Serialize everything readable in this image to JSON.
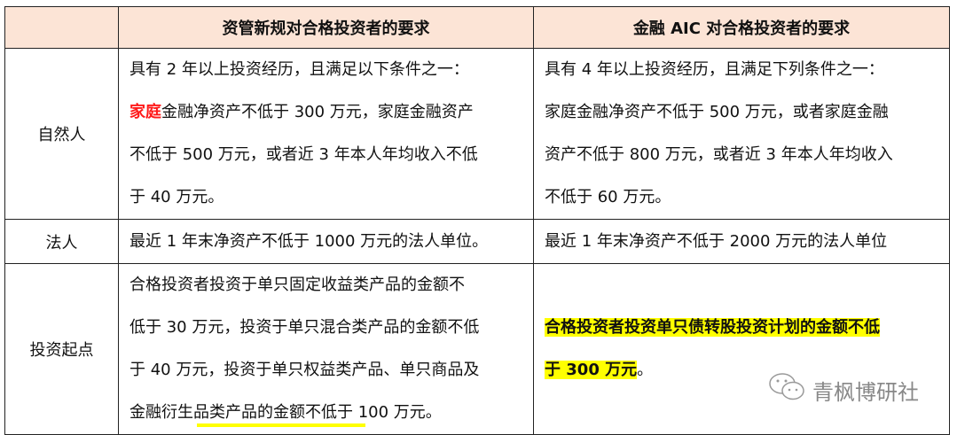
{
  "header": {
    "col1": "",
    "col2": "资管新规对合格投资者的要求",
    "col3": "金融 AIC 对合格投资者的要求"
  },
  "rows": [
    {
      "label": "自然人",
      "col2": {
        "lines": [
          "具有 2 年以上投资经历，且满足以下条件之一：",
          "金融净资产不低于 300 万元，家庭金融资产",
          "不低于 500 万元，或者近 3 年本人年均收入不低",
          "于 40 万元。"
        ],
        "highlight_prefix": "家庭",
        "highlight_color": "#ff1a1a"
      },
      "col3": {
        "lines": [
          "具有 4 年以上投资经历，且满足下列条件之一：",
          "家庭金融净资产不低于 500 万元，或者家庭金融",
          "资产不低于 800 万元，或者近 3 年本人年均收入",
          "不低于 60 万元。"
        ]
      }
    },
    {
      "label": "法人",
      "col2": {
        "lines": [
          "最近 1 年末净资产不低于 1000 万元的法人单位。"
        ]
      },
      "col3": {
        "lines": [
          "最近 1 年末净资产不低于 2000 万元的法人单位"
        ]
      }
    },
    {
      "label": "投资起点",
      "col2": {
        "lines": [
          "合格投资者投资于单只固定收益类产品的金额不",
          "低于 30 万元，投资于单只混合类产品的金额不低",
          "于 40 万元，投资于单只权益类产品、单只商品及",
          "金融衍生品类产品的金额不低于 100 万元。"
        ]
      },
      "col3": {
        "lines": [
          "合格投资者投资单只债转股投资计划的金额不低",
          "于 300 万元"
        ],
        "trailing": "。",
        "highlight_color": "#ffff00"
      }
    }
  ],
  "watermark": {
    "text": "青枫博研社",
    "icon": "wechat-icon"
  },
  "colors": {
    "header_bg": "#FCE4D6",
    "highlight": "#ffff00",
    "emphasis": "#ff1a1a"
  }
}
